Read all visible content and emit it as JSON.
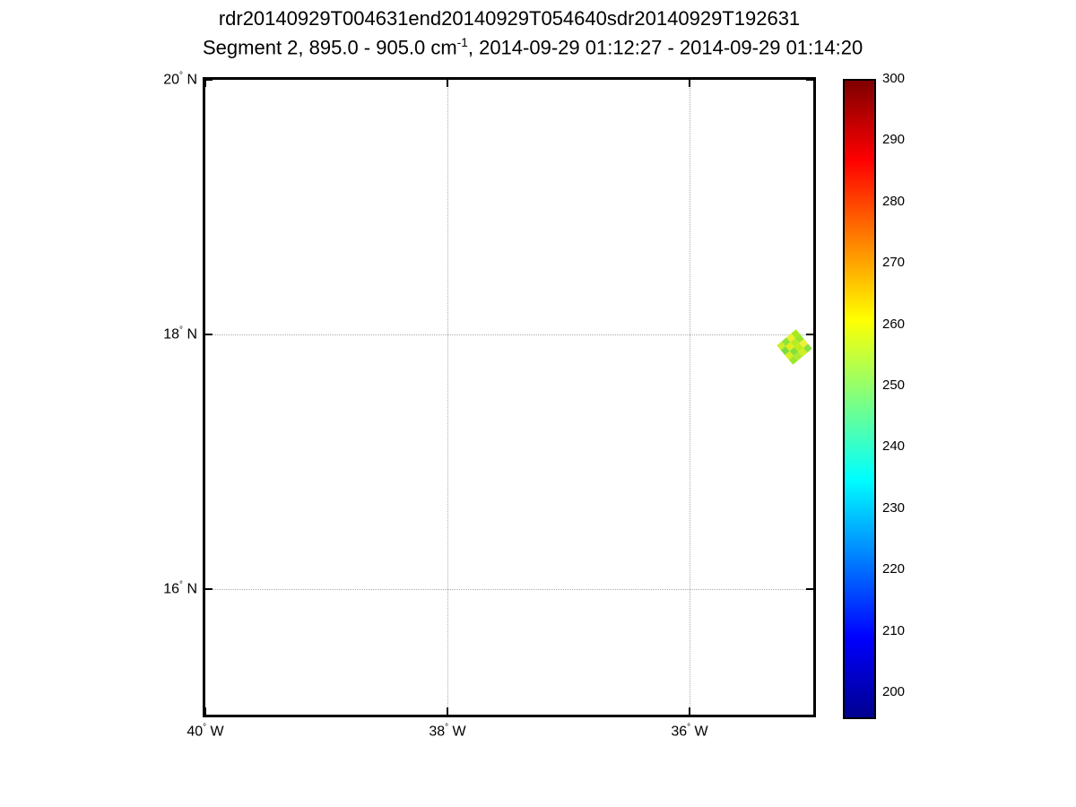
{
  "figure": {
    "title_line1": "rdr20140929T004631end20140929T054640sdr20140929T192631",
    "title_line2": {
      "prefix": "Segment 2, 895.0 - 905.0 cm",
      "superscript": "-1",
      "suffix": ", 2014-09-29 01:12:27 - 2014-09-29 01:14:20"
    }
  },
  "chart_data": {
    "type": "scatter",
    "subtype": "geographic-map-with-colorbar",
    "title": "rdr20140929T004631end20140929T054640sdr20140929T192631",
    "subtitle": "Segment 2, 895.0 - 905.0 cm^-1, 2014-09-29 01:12:27 - 2014-09-29 01:14:20",
    "grid": true,
    "x_axis": {
      "unit": "degrees longitude west",
      "range": [
        -40,
        -34.98
      ],
      "tick_values": [
        -40,
        -38,
        -36
      ],
      "ticks": [
        {
          "num": "40",
          "dir": "W"
        },
        {
          "num": "38",
          "dir": "W"
        },
        {
          "num": "36",
          "dir": "W"
        }
      ]
    },
    "y_axis": {
      "unit": "degrees latitude north",
      "range": [
        15.0,
        20.0
      ],
      "tick_values": [
        20,
        18,
        16
      ],
      "ticks": [
        {
          "num": "20",
          "dir": "N"
        },
        {
          "num": "18",
          "dir": "N"
        },
        {
          "num": "16",
          "dir": "N"
        }
      ]
    },
    "colorbar": {
      "colormap": "jet",
      "clim": [
        195.6,
        300
      ],
      "tick_values": [
        300,
        290,
        280,
        270,
        260,
        250,
        240,
        230,
        220,
        210,
        200
      ],
      "stops_top_to_bottom": [
        "#7F0000",
        "#FF0000",
        "#FFFF00",
        "#00FFFF",
        "#0000FF",
        "#00008F"
      ],
      "stop_positions_pct": [
        0,
        12.5,
        37.5,
        62.5,
        87.5,
        100
      ]
    },
    "series": [
      {
        "name": "granule-footprint",
        "center_lat": 17.9,
        "center_lon": -35.13,
        "approx_value_range_K": [
          246,
          260
        ],
        "cells": [
          "#cdee2a",
          "#8fe434",
          "#ecf02c",
          "#a8ea1e",
          "#7ddc3c",
          "#e2f018",
          "#b6ec22",
          "#97e62c",
          "#d8ef20",
          "#86e03a",
          "#c0ee16",
          "#eef03a",
          "#9ce828",
          "#b0ea30",
          "#d0ee24",
          "#8ae23e"
        ]
      }
    ]
  }
}
